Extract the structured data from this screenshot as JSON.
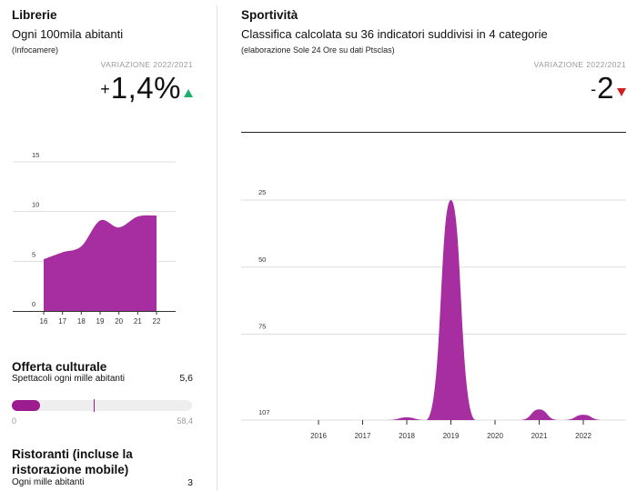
{
  "librerie": {
    "title": "Librerie",
    "subtitle": "Ogni 100mila abitanti",
    "source": "(Infocamere)",
    "variation_label": "VARIAZIONE 2022/2021",
    "variation_sign": "+",
    "variation_value": "1,4%",
    "trend": "up"
  },
  "sportivita": {
    "title": "Sportività",
    "subtitle": "Classifica calcolata su 36 indicatori suddivisi in 4 categorie",
    "source": "(elaborazione Sole 24 Ore su dati Ptsclas)",
    "variation_label": "VARIAZIONE 2022/2021",
    "variation_sign": "-",
    "variation_value": "2",
    "trend": "down"
  },
  "offerta": {
    "title": "Offerta culturale",
    "label": "Spettacoli ogni mille abitanti",
    "value_text": "5,6",
    "value": 5.6,
    "min_text": "0",
    "max_text": "58,4",
    "min": 0,
    "max": 58.4,
    "marker_value": 26.5
  },
  "ristoranti": {
    "title": "Ristoranti (incluse la ristorazione mobile)",
    "label": "Ogni mille abitanti",
    "value_text": "3"
  },
  "colors": {
    "accent": "#9c1c8f",
    "area": "#a62ea0",
    "up": "#1fae6c",
    "down": "#d11f1f",
    "grid": "#dddddd"
  },
  "chart_data": [
    {
      "type": "area",
      "x": [
        "16",
        "17",
        "18",
        "19",
        "20",
        "21",
        "22"
      ],
      "values": [
        5.2,
        5.9,
        6.5,
        9.1,
        8.4,
        9.5,
        9.6
      ],
      "y_ticks": [
        "15",
        "10",
        "5",
        "0"
      ],
      "ylim": [
        0,
        15
      ],
      "grid": true
    },
    {
      "type": "area",
      "x": [
        "2016",
        "2017",
        "2018",
        "2019",
        "2020",
        "2021",
        "2022"
      ],
      "ranks": [
        107,
        107,
        106,
        25,
        107,
        103,
        105
      ],
      "y_ticks": [
        "25",
        "50",
        "75",
        "107"
      ],
      "ylim": [
        107,
        25
      ],
      "y_reversed": true,
      "grid": true
    }
  ]
}
